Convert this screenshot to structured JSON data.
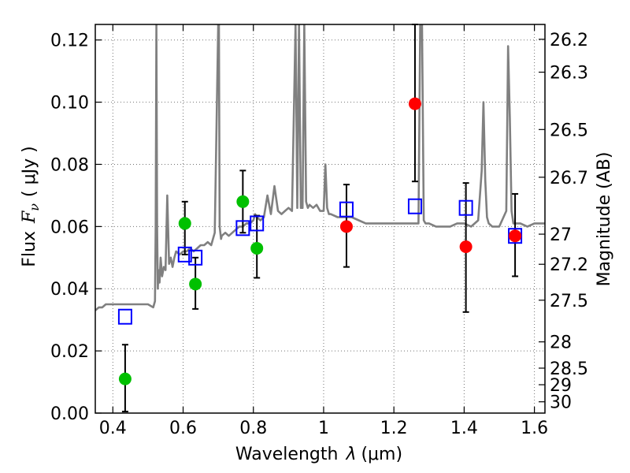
{
  "chart_data": {
    "type": "scatter",
    "title": "",
    "xlabel": "Wavelength",
    "xlabel_symbol": "λ",
    "xlabel_unit": "(μm)",
    "ylabel": "Flux",
    "ylabel_symbol": "F",
    "ylabel_subscript": "ν",
    "ylabel_unit": "( μJy )",
    "y2label": "Magnitude (AB)",
    "xlim": [
      0.35,
      1.63
    ],
    "ylim": [
      0.0,
      0.125
    ],
    "grid": true,
    "x_ticks": [
      {
        "value": 0.4,
        "label": "0.4"
      },
      {
        "value": 0.6,
        "label": "0.6"
      },
      {
        "value": 0.8,
        "label": "0.8"
      },
      {
        "value": 1.0,
        "label": "1"
      },
      {
        "value": 1.2,
        "label": "1.2"
      },
      {
        "value": 1.4,
        "label": "1.4"
      },
      {
        "value": 1.6,
        "label": "1.6"
      }
    ],
    "y_ticks": [
      {
        "value": 0.0,
        "label": "0.00"
      },
      {
        "value": 0.02,
        "label": "0.02"
      },
      {
        "value": 0.04,
        "label": "0.04"
      },
      {
        "value": 0.06,
        "label": "0.06"
      },
      {
        "value": 0.08,
        "label": "0.08"
      },
      {
        "value": 0.1,
        "label": "0.10"
      },
      {
        "value": 0.12,
        "label": "0.12"
      }
    ],
    "mag_ticks": [
      {
        "mag": 26.2,
        "label": "26.2"
      },
      {
        "mag": 26.3,
        "label": "26.3"
      },
      {
        "mag": 26.5,
        "label": "26.5"
      },
      {
        "mag": 26.7,
        "label": "26.7"
      },
      {
        "mag": 27.0,
        "label": "27"
      },
      {
        "mag": 27.2,
        "label": "27.2"
      },
      {
        "mag": 27.5,
        "label": "27.5"
      },
      {
        "mag": 28.0,
        "label": "28"
      },
      {
        "mag": 28.5,
        "label": "28.5"
      },
      {
        "mag": 29.0,
        "label": "29"
      },
      {
        "mag": 30.0,
        "label": "30"
      }
    ],
    "colors": {
      "spectrum": "#808080",
      "green": "#00c000",
      "red": "#ff0000",
      "model_box": "#0000ff",
      "errorbar": "#000000"
    },
    "series": [
      {
        "name": "spectrum",
        "kind": "line",
        "x": [
          0.35,
          0.36,
          0.37,
          0.38,
          0.4,
          0.42,
          0.45,
          0.48,
          0.5,
          0.515,
          0.52,
          0.522,
          0.524,
          0.526,
          0.528,
          0.53,
          0.533,
          0.536,
          0.54,
          0.545,
          0.55,
          0.555,
          0.56,
          0.565,
          0.57,
          0.575,
          0.58,
          0.59,
          0.6,
          0.61,
          0.62,
          0.63,
          0.64,
          0.65,
          0.66,
          0.67,
          0.68,
          0.69,
          0.7,
          0.702,
          0.704,
          0.706,
          0.708,
          0.71,
          0.72,
          0.73,
          0.74,
          0.75,
          0.76,
          0.77,
          0.78,
          0.79,
          0.8,
          0.805,
          0.81,
          0.82,
          0.83,
          0.84,
          0.85,
          0.86,
          0.87,
          0.88,
          0.89,
          0.9,
          0.91,
          0.92,
          0.925,
          0.93,
          0.935,
          0.94,
          0.945,
          0.95,
          0.955,
          0.96,
          0.97,
          0.98,
          0.99,
          1.0,
          1.005,
          1.01,
          1.015,
          1.02,
          1.04,
          1.06,
          1.08,
          1.1,
          1.12,
          1.14,
          1.16,
          1.18,
          1.2,
          1.22,
          1.24,
          1.26,
          1.27,
          1.275,
          1.28,
          1.285,
          1.29,
          1.3,
          1.32,
          1.34,
          1.36,
          1.38,
          1.4,
          1.42,
          1.44,
          1.45,
          1.455,
          1.46,
          1.465,
          1.47,
          1.48,
          1.5,
          1.52,
          1.525,
          1.53,
          1.535,
          1.54,
          1.56,
          1.58,
          1.6,
          1.63
        ],
        "y": [
          0.033,
          0.034,
          0.034,
          0.035,
          0.035,
          0.035,
          0.035,
          0.035,
          0.035,
          0.034,
          0.036,
          0.06,
          0.125,
          0.06,
          0.04,
          0.046,
          0.042,
          0.05,
          0.044,
          0.047,
          0.046,
          0.07,
          0.048,
          0.05,
          0.047,
          0.05,
          0.052,
          0.051,
          0.052,
          0.052,
          0.053,
          0.052,
          0.053,
          0.054,
          0.054,
          0.055,
          0.054,
          0.058,
          0.125,
          0.125,
          0.06,
          0.058,
          0.056,
          0.057,
          0.058,
          0.057,
          0.058,
          0.059,
          0.06,
          0.06,
          0.061,
          0.061,
          0.062,
          0.064,
          0.063,
          0.062,
          0.063,
          0.07,
          0.064,
          0.073,
          0.065,
          0.064,
          0.065,
          0.066,
          0.065,
          0.125,
          0.066,
          0.125,
          0.066,
          0.066,
          0.125,
          0.068,
          0.066,
          0.067,
          0.066,
          0.067,
          0.065,
          0.065,
          0.08,
          0.066,
          0.064,
          0.064,
          0.063,
          0.063,
          0.063,
          0.062,
          0.061,
          0.061,
          0.061,
          0.061,
          0.061,
          0.061,
          0.061,
          0.061,
          0.061,
          0.125,
          0.125,
          0.062,
          0.061,
          0.061,
          0.06,
          0.06,
          0.06,
          0.061,
          0.061,
          0.06,
          0.062,
          0.078,
          0.1,
          0.075,
          0.063,
          0.061,
          0.06,
          0.06,
          0.065,
          0.118,
          0.095,
          0.065,
          0.061,
          0.061,
          0.06,
          0.061,
          0.061
        ]
      },
      {
        "name": "model",
        "kind": "box",
        "x": [
          0.435,
          0.605,
          0.635,
          0.77,
          0.81,
          1.065,
          1.26,
          1.405,
          1.545
        ],
        "y": [
          0.031,
          0.051,
          0.05,
          0.0595,
          0.061,
          0.0655,
          0.0665,
          0.066,
          0.057
        ]
      },
      {
        "name": "optical detections",
        "kind": "circle",
        "color": "green",
        "x": [
          0.435,
          0.605,
          0.635,
          0.77,
          0.81
        ],
        "y": [
          0.011,
          0.061,
          0.0415,
          0.068,
          0.053
        ],
        "err_low": [
          0.0005,
          0.051,
          0.0335,
          0.058,
          0.0435
        ],
        "err_high": [
          0.022,
          0.068,
          0.05,
          0.078,
          0.0635
        ]
      },
      {
        "name": "infrared detections",
        "kind": "circle",
        "color": "red",
        "x": [
          1.065,
          1.26,
          1.405,
          1.545
        ],
        "y": [
          0.06,
          0.0995,
          0.0535,
          0.057
        ],
        "err_low": [
          0.047,
          0.0745,
          0.0325,
          0.044
        ],
        "err_high": [
          0.0735,
          0.125,
          0.074,
          0.0705
        ]
      }
    ]
  }
}
